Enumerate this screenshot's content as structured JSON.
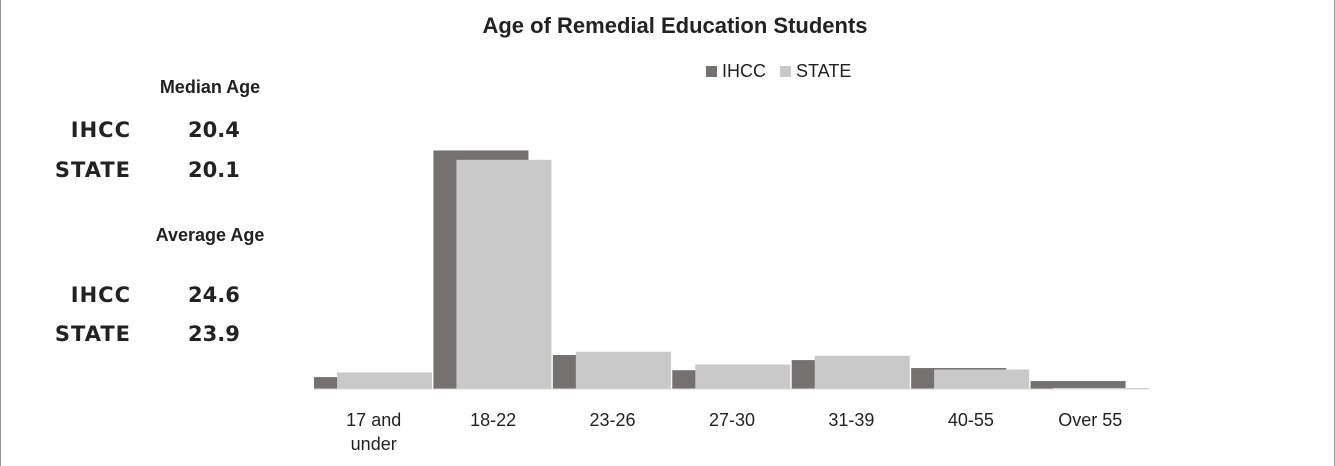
{
  "chart_data": {
    "type": "bar",
    "title": "Age of Remedial Education Students",
    "categories": [
      "17 and under",
      "18-22",
      "23-26",
      "27-30",
      "31-39",
      "40-55",
      "Over 55"
    ],
    "series": [
      {
        "name": "IHCC",
        "color": "#767171",
        "values": [
          3.3,
          66.0,
          9.4,
          5.2,
          8.0,
          5.8,
          2.2
        ]
      },
      {
        "name": "STATE",
        "color": "#c9c9c9",
        "values": [
          4.6,
          63.4,
          10.3,
          6.8,
          9.2,
          5.4,
          0.3
        ]
      }
    ],
    "ylim": [
      0,
      70
    ],
    "legend": "top"
  },
  "stats": [
    {
      "heading": "Median Age",
      "rows": [
        {
          "label": "IHCC",
          "value": "20.4"
        },
        {
          "label": "STATE",
          "value": "20.1"
        }
      ]
    },
    {
      "heading": "Average Age",
      "rows": [
        {
          "label": "IHCC",
          "value": "24.6"
        },
        {
          "label": "STATE",
          "value": "23.9"
        }
      ]
    }
  ]
}
